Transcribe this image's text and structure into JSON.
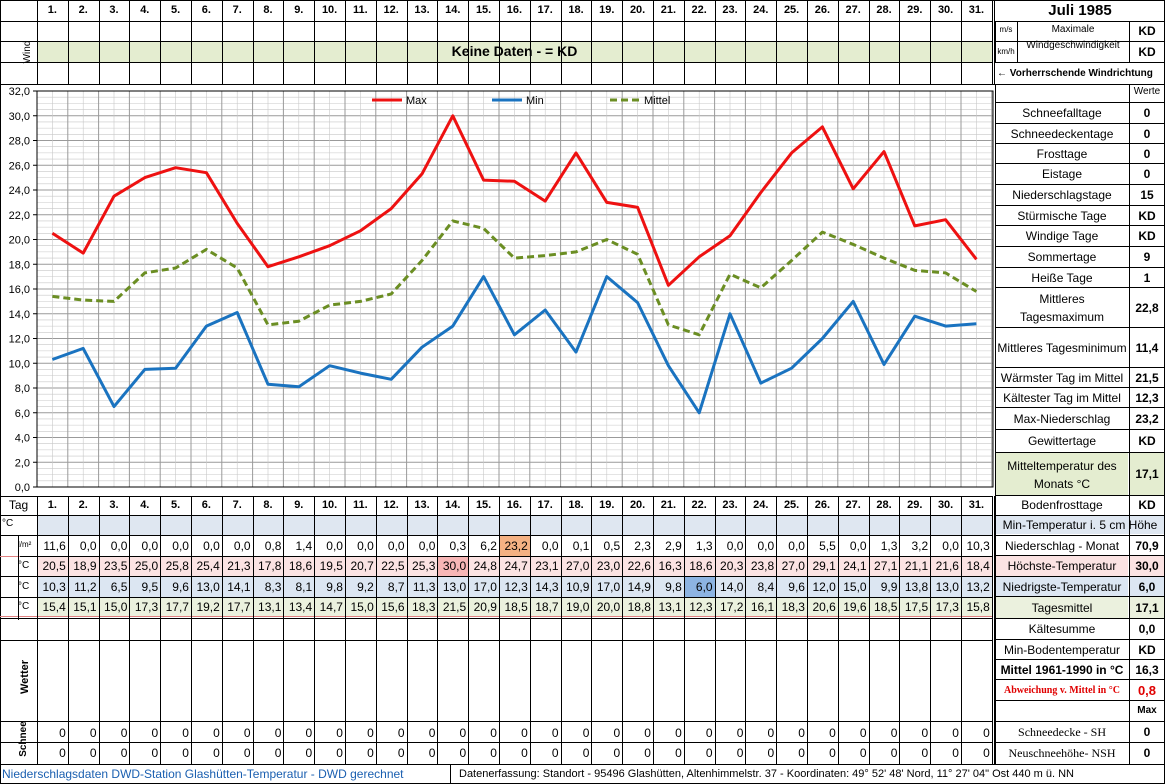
{
  "title": "Juli 1985",
  "days": [
    "1.",
    "2.",
    "3.",
    "4.",
    "5.",
    "6.",
    "7.",
    "8.",
    "9.",
    "10.",
    "11.",
    "12.",
    "13.",
    "14.",
    "15.",
    "16.",
    "17.",
    "18.",
    "19.",
    "20.",
    "21.",
    "22.",
    "23.",
    "24.",
    "25.",
    "26.",
    "27.",
    "28.",
    "29.",
    "30.",
    "31."
  ],
  "wind": {
    "side_label": "Wind",
    "banner": "Keine Daten -  = KD",
    "unit_ms": "m/s",
    "unit_kmh": "km/h",
    "max_label_1": "Maximale",
    "max_label_2": "Windgeschwindigkeit",
    "max_val_1": "KD",
    "max_val_2": "KD",
    "direction_label": "← Vorherrschende Windrichtung"
  },
  "chart_data": {
    "type": "line",
    "categories": [
      "1.",
      "2.",
      "3.",
      "4.",
      "5.",
      "6.",
      "7.",
      "8.",
      "9.",
      "10.",
      "11.",
      "12.",
      "13.",
      "14.",
      "15.",
      "16.",
      "17.",
      "18.",
      "19.",
      "20.",
      "21.",
      "22.",
      "23.",
      "24.",
      "25.",
      "26.",
      "27.",
      "28.",
      "29.",
      "30.",
      "31."
    ],
    "ylim": [
      0,
      32
    ],
    "yticks": [
      "0,0",
      "2,0",
      "4,0",
      "6,0",
      "8,0",
      "10,0",
      "12,0",
      "14,0",
      "16,0",
      "18,0",
      "20,0",
      "22,0",
      "24,0",
      "26,0",
      "28,0",
      "30,0",
      "32,0"
    ],
    "grid": true,
    "legend": "top",
    "series": [
      {
        "name": "Max",
        "color": "#ee1111",
        "style": "solid",
        "values": [
          20.5,
          18.9,
          23.5,
          25.0,
          25.8,
          25.4,
          21.3,
          17.8,
          18.6,
          19.5,
          20.7,
          22.5,
          25.3,
          30.0,
          24.8,
          24.7,
          23.1,
          27.0,
          23.0,
          22.6,
          16.3,
          18.6,
          20.3,
          23.8,
          27.0,
          29.1,
          24.1,
          27.1,
          21.1,
          21.6,
          18.4
        ]
      },
      {
        "name": "Min",
        "color": "#1a73c0",
        "style": "solid",
        "values": [
          10.3,
          11.2,
          6.5,
          9.5,
          9.6,
          13.0,
          14.1,
          8.3,
          8.1,
          9.8,
          9.2,
          8.7,
          11.3,
          13.0,
          17.0,
          12.3,
          14.3,
          10.9,
          17.0,
          14.9,
          9.8,
          6.0,
          14.0,
          8.4,
          9.6,
          12.0,
          15.0,
          9.9,
          13.8,
          13.0,
          13.2
        ]
      },
      {
        "name": "Mittel",
        "color": "#6b8e23",
        "style": "dashed",
        "values": [
          15.4,
          15.1,
          15.0,
          17.3,
          17.7,
          19.2,
          17.7,
          13.1,
          13.4,
          14.7,
          15.0,
          15.6,
          18.3,
          21.5,
          20.9,
          18.5,
          18.7,
          19.0,
          20.0,
          18.8,
          13.1,
          12.3,
          17.2,
          16.1,
          18.3,
          20.6,
          19.6,
          18.5,
          17.5,
          17.3,
          15.8
        ]
      }
    ]
  },
  "table": {
    "tag_label": "Tag",
    "unit_c": "°C",
    "unit_lm2": "l/m²",
    "wetter_label": "Wetter",
    "schnee_label": "Schnee",
    "precip": [
      "11,6",
      "0,0",
      "0,0",
      "0,0",
      "0,0",
      "0,0",
      "0,0",
      "0,8",
      "1,4",
      "0,0",
      "0,0",
      "0,0",
      "0,0",
      "0,3",
      "6,2",
      "23,2",
      "0,0",
      "0,1",
      "0,5",
      "2,3",
      "2,9",
      "1,3",
      "0,0",
      "0,0",
      "0,0",
      "5,5",
      "0,0",
      "1,3",
      "3,2",
      "0,0",
      "10,3"
    ],
    "max": [
      "20,5",
      "18,9",
      "23,5",
      "25,0",
      "25,8",
      "25,4",
      "21,3",
      "17,8",
      "18,6",
      "19,5",
      "20,7",
      "22,5",
      "25,3",
      "30,0",
      "24,8",
      "24,7",
      "23,1",
      "27,0",
      "23,0",
      "22,6",
      "16,3",
      "18,6",
      "20,3",
      "23,8",
      "27,0",
      "29,1",
      "24,1",
      "27,1",
      "21,1",
      "21,6",
      "18,4"
    ],
    "min": [
      "10,3",
      "11,2",
      "6,5",
      "9,5",
      "9,6",
      "13,0",
      "14,1",
      "8,3",
      "8,1",
      "9,8",
      "9,2",
      "8,7",
      "11,3",
      "13,0",
      "17,0",
      "12,3",
      "14,3",
      "10,9",
      "17,0",
      "14,9",
      "9,8",
      "6,0",
      "14,0",
      "8,4",
      "9,6",
      "12,0",
      "15,0",
      "9,9",
      "13,8",
      "13,0",
      "13,2"
    ],
    "mean": [
      "15,4",
      "15,1",
      "15,0",
      "17,3",
      "17,7",
      "19,2",
      "17,7",
      "13,1",
      "13,4",
      "14,7",
      "15,0",
      "15,6",
      "18,3",
      "21,5",
      "20,9",
      "18,5",
      "18,7",
      "19,0",
      "20,0",
      "18,8",
      "13,1",
      "12,3",
      "17,2",
      "16,1",
      "18,3",
      "20,6",
      "19,6",
      "18,5",
      "17,5",
      "17,3",
      "15,8"
    ],
    "snow_sh": [
      "0",
      "0",
      "0",
      "0",
      "0",
      "0",
      "0",
      "0",
      "0",
      "0",
      "0",
      "0",
      "0",
      "0",
      "0",
      "0",
      "0",
      "0",
      "0",
      "0",
      "0",
      "0",
      "0",
      "0",
      "0",
      "0",
      "0",
      "0",
      "0",
      "0",
      "0"
    ],
    "snow_nsh": [
      "0",
      "0",
      "0",
      "0",
      "0",
      "0",
      "0",
      "0",
      "0",
      "0",
      "0",
      "0",
      "0",
      "0",
      "0",
      "0",
      "0",
      "0",
      "0",
      "0",
      "0",
      "0",
      "0",
      "0",
      "0",
      "0",
      "0",
      "0",
      "0",
      "0",
      "0"
    ]
  },
  "stats": {
    "werte_header": "Werte",
    "rows": [
      {
        "label": "Schneefalltage",
        "value": "0"
      },
      {
        "label": "Schneedeckentage",
        "value": "0"
      },
      {
        "label": "Frosttage",
        "value": "0"
      },
      {
        "label": "Eistage",
        "value": "0"
      },
      {
        "label": "Niederschlagstage",
        "value": "15"
      },
      {
        "label": "Stürmische Tage",
        "value": "KD"
      },
      {
        "label": "Windige Tage",
        "value": "KD"
      },
      {
        "label": "Sommertage",
        "value": "9"
      },
      {
        "label": "Heiße Tage",
        "value": "1"
      },
      {
        "label": "Mittleres Tagesmaximum",
        "value": "22,8"
      },
      {
        "label": "Mittleres Tagesminimum",
        "value": "11,4"
      },
      {
        "label": "Wärmster Tag im Mittel",
        "value": "21,5"
      },
      {
        "label": "Kältester Tag im Mittel",
        "value": "12,3"
      },
      {
        "label": "Max-Niederschlag",
        "value": "23,2"
      },
      {
        "label": "Gewittertage",
        "value": "KD"
      },
      {
        "label": "Mitteltemperatur des Monats °C",
        "value": "17,1"
      },
      {
        "label": "Bodenfrosttage",
        "value": "KD"
      }
    ],
    "lower": [
      {
        "label": "Min-Temperatur i. 5 cm Höhe",
        "value": ""
      },
      {
        "label": "Niederschlag - Monat",
        "value": "70,9"
      },
      {
        "label": "Höchste-Temperatur",
        "value": "30,0"
      },
      {
        "label": "Niedrigste-Temperatur",
        "value": "6,0"
      },
      {
        "label": "Tagesmittel",
        "value": "17,1"
      },
      {
        "label": "Kältesumme",
        "value": "0,0"
      },
      {
        "label": "Min-Bodentemperatur",
        "value": "KD"
      },
      {
        "label": "Mittel 1961-1990 in °C",
        "value": "16,3"
      },
      {
        "label": "Abweichung v. Mittel in °C",
        "value": "0,8"
      },
      {
        "label": "",
        "value": "Max"
      },
      {
        "label": "Schneedecke -   SH",
        "value": "0"
      },
      {
        "label": "Neuschneehöhe- NSH",
        "value": "0"
      }
    ]
  },
  "footer": {
    "left": "Niederschlagsdaten DWD-Station Glashütten-Temperatur -   DWD gerechnet",
    "right": "Datenerfassung: Standort -  95496  Glashütten, Altenhimmelstr. 37 - Koordinaten:  49° 52' 48' Nord,   11° 27' 04\" Ost   440 m ü. NN"
  }
}
